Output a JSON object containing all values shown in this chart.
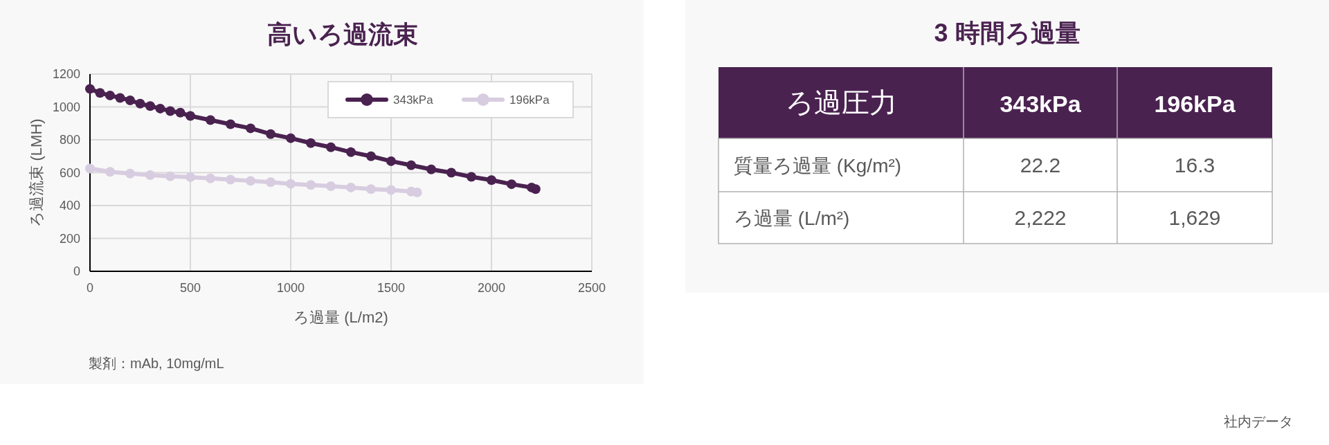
{
  "chart_data": [
    {
      "type": "line",
      "title": "高いろ過流束",
      "xlabel": "ろ過量 (L/m2)",
      "ylabel": "ろ過流束 (LMH)",
      "xlim": [
        0,
        2500
      ],
      "xticks": [
        0,
        500,
        1000,
        1500,
        2000,
        2500
      ],
      "ylim": [
        0,
        1200
      ],
      "yticks": [
        0,
        200,
        400,
        600,
        800,
        1000,
        1200
      ],
      "grid": true,
      "legend": "top right",
      "marker": "circle",
      "line_style": "solid",
      "series": [
        {
          "name": "343kPa",
          "color": "#4a2250",
          "x": [
            0,
            50,
            100,
            150,
            200,
            250,
            300,
            350,
            400,
            450,
            500,
            600,
            700,
            800,
            900,
            1000,
            1100,
            1200,
            1300,
            1400,
            1500,
            1600,
            1700,
            1800,
            1900,
            2000,
            2100,
            2200,
            2220
          ],
          "values": [
            1110,
            1085,
            1070,
            1055,
            1040,
            1020,
            1005,
            990,
            975,
            965,
            945,
            920,
            895,
            870,
            835,
            810,
            780,
            755,
            725,
            700,
            670,
            645,
            620,
            600,
            575,
            555,
            530,
            510,
            500
          ]
        },
        {
          "name": "196kPa",
          "color": "#d8cde0",
          "x": [
            0,
            100,
            200,
            300,
            400,
            500,
            600,
            700,
            800,
            900,
            1000,
            1100,
            1200,
            1300,
            1400,
            1500,
            1600,
            1630
          ],
          "values": [
            625,
            605,
            595,
            585,
            578,
            573,
            565,
            558,
            550,
            542,
            532,
            525,
            518,
            510,
            500,
            495,
            485,
            480
          ]
        }
      ],
      "annotations": [
        "製剤：mAb, 10mg/mL"
      ]
    },
    {
      "type": "other",
      "title": "3 時間ろ過量",
      "categories": [
        "ろ過圧力",
        "343kPa",
        "196kPa"
      ],
      "y_categories": [
        "質量ろ過量 (Kg/m²)",
        "ろ過量 (L/m²)"
      ],
      "cell_labels": [
        [
          "22.2",
          "16.3"
        ],
        [
          "2,222",
          "1,629"
        ]
      ],
      "annotations": [
        "社内データ"
      ]
    }
  ]
}
